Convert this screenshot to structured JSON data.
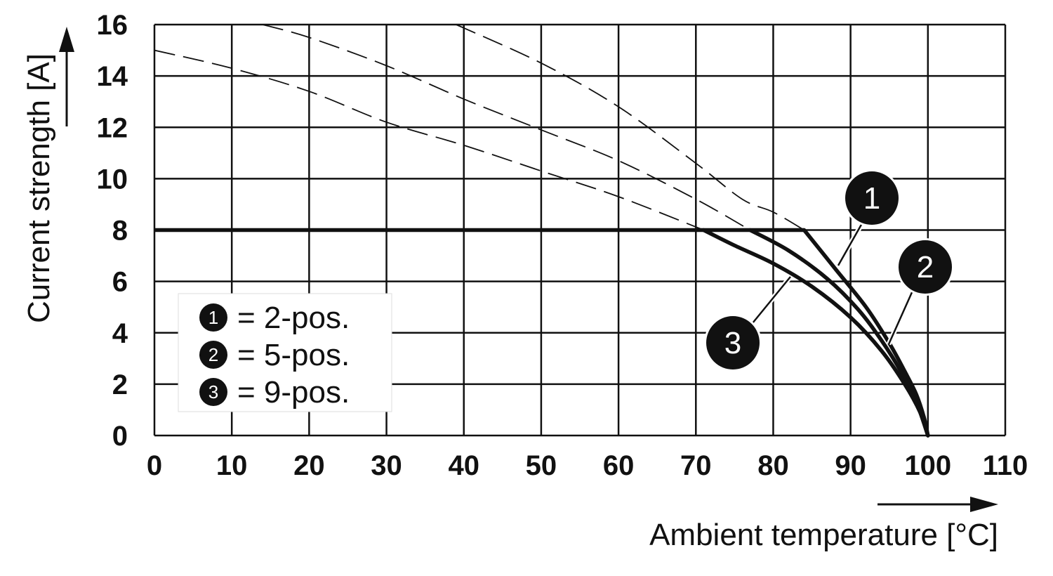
{
  "chart_data": {
    "type": "line",
    "xlabel": "Ambient temperature [°C]",
    "ylabel": "Current strength [A]",
    "xlim": [
      0,
      110
    ],
    "ylim": [
      0,
      16
    ],
    "x_ticks": [
      "0",
      "10",
      "20",
      "30",
      "40",
      "50",
      "60",
      "70",
      "80",
      "90",
      "100",
      "110"
    ],
    "y_ticks": [
      "0",
      "2",
      "4",
      "6",
      "8",
      "10",
      "12",
      "14",
      "16"
    ],
    "grid": true,
    "legend_position": "bottom-left",
    "max_current": {
      "x": [
        0,
        84
      ],
      "y": [
        8,
        8
      ]
    },
    "series": [
      {
        "id": "1",
        "name": "2-pos.",
        "badge": "1",
        "x": [
          84,
          88,
          92,
          95,
          97,
          98.5,
          99.5,
          100
        ],
        "y": [
          8,
          6.5,
          5,
          3.6,
          2.5,
          1.6,
          0.7,
          0
        ],
        "unlimited_x": [
          39,
          50,
          60,
          70,
          76,
          80,
          84
        ],
        "unlimited_y": [
          16,
          14.5,
          12.8,
          10.6,
          9.2,
          8.7,
          8
        ]
      },
      {
        "id": "2",
        "name": "5-pos.",
        "badge": "2",
        "x": [
          77,
          82,
          87,
          91,
          94,
          96.5,
          98.5,
          100
        ],
        "y": [
          8,
          7.2,
          6.1,
          4.9,
          3.7,
          2.5,
          1.3,
          0
        ],
        "unlimited_x": [
          14,
          20,
          30,
          40,
          50,
          60,
          70,
          77
        ],
        "unlimited_y": [
          16,
          15.5,
          14.4,
          13.1,
          11.9,
          10.7,
          9.2,
          8
        ]
      },
      {
        "id": "3",
        "name": "9-pos.",
        "badge": "3",
        "x": [
          71,
          75,
          80,
          85,
          90,
          94,
          97,
          99,
          100
        ],
        "y": [
          8,
          7.4,
          6.7,
          5.8,
          4.6,
          3.3,
          2,
          0.9,
          0
        ],
        "unlimited_x": [
          0,
          10,
          20,
          30,
          40,
          50,
          60,
          71
        ],
        "unlimited_y": [
          15,
          14.3,
          13.4,
          12.2,
          11.3,
          10.3,
          9.3,
          8
        ]
      }
    ],
    "legend": [
      {
        "badge": "1",
        "label": "= 2-pos."
      },
      {
        "badge": "2",
        "label": "= 5-pos."
      },
      {
        "badge": "3",
        "label": "= 9-pos."
      }
    ],
    "colors": {
      "line": "#111111",
      "badge": "#111111",
      "badge_text": "#ffffff",
      "grid": "#111111"
    }
  }
}
